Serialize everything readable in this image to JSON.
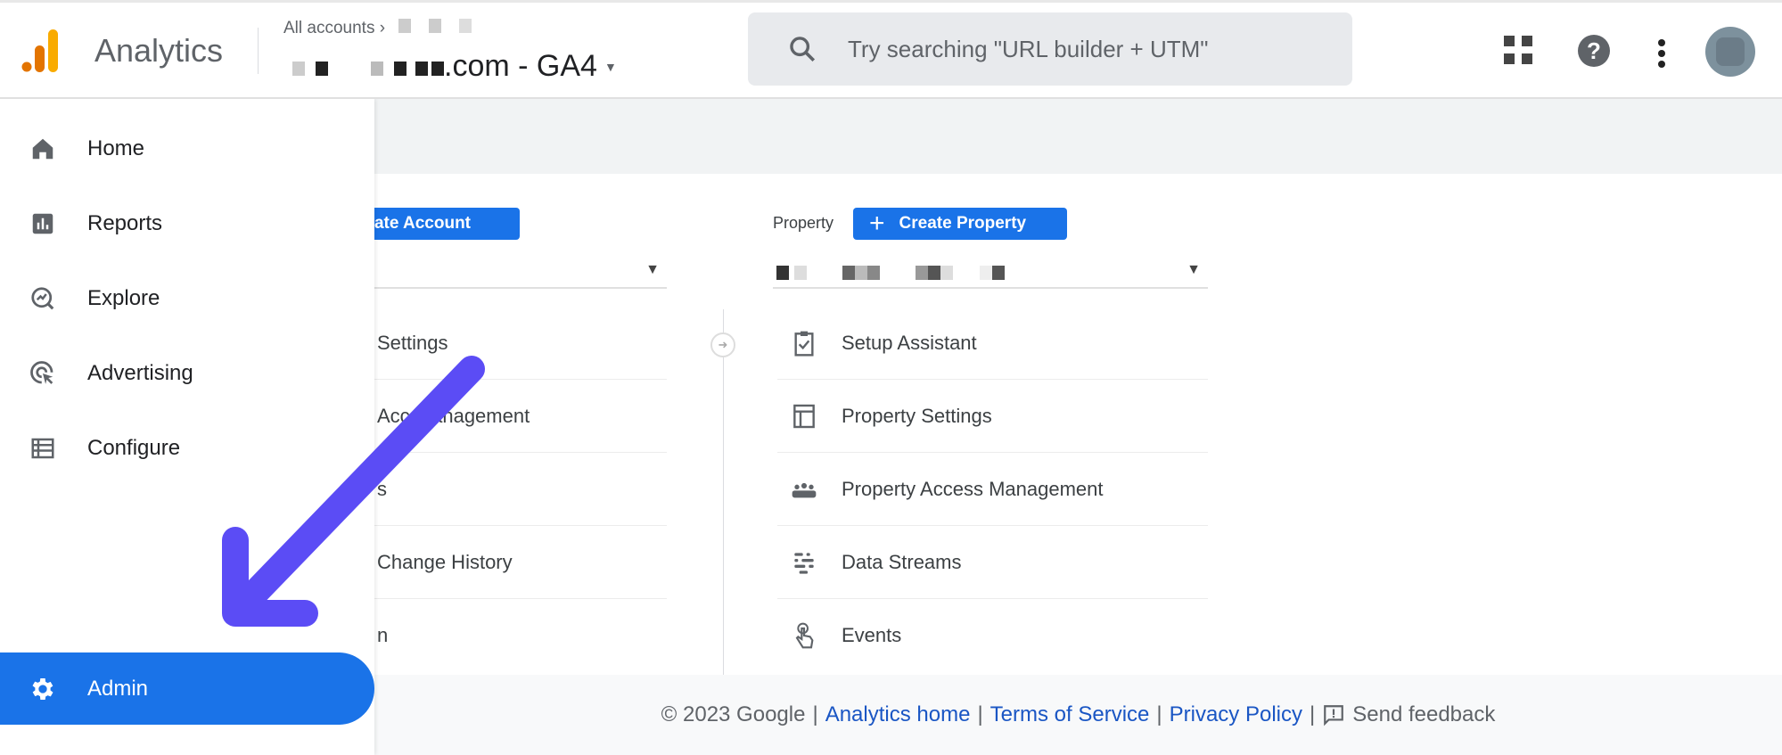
{
  "header": {
    "app_name": "Analytics",
    "breadcrumb": "All accounts",
    "property_name_suffix": ".com - GA4",
    "search_placeholder": "Try searching \"URL builder + UTM\""
  },
  "sidebar": {
    "items": [
      {
        "label": "Home",
        "icon": "home-icon"
      },
      {
        "label": "Reports",
        "icon": "reports-icon"
      },
      {
        "label": "Explore",
        "icon": "explore-icon"
      },
      {
        "label": "Advertising",
        "icon": "advertising-icon"
      },
      {
        "label": "Configure",
        "icon": "configure-icon"
      }
    ],
    "admin": {
      "label": "Admin",
      "icon": "gear-icon",
      "active": true
    }
  },
  "account_column": {
    "create_button": "reate Account",
    "items": [
      "Settings",
      "Acc    Management",
      "s",
      "Change History",
      "n"
    ]
  },
  "property_column": {
    "label": "Property",
    "create_button": "Create Property",
    "items": [
      {
        "label": "Setup Assistant",
        "icon": "clipboard-check-icon"
      },
      {
        "label": "Property Settings",
        "icon": "layout-icon"
      },
      {
        "label": "Property Access Management",
        "icon": "people-icon"
      },
      {
        "label": "Data Streams",
        "icon": "data-streams-icon"
      },
      {
        "label": "Events",
        "icon": "touch-icon"
      }
    ]
  },
  "footer": {
    "copyright": "© 2023 Google",
    "links": [
      "Analytics home",
      "Terms of Service",
      "Privacy Policy"
    ],
    "feedback": "Send feedback"
  },
  "colors": {
    "accent": "#1a73e8",
    "annotation_arrow": "#5b4cf5"
  }
}
